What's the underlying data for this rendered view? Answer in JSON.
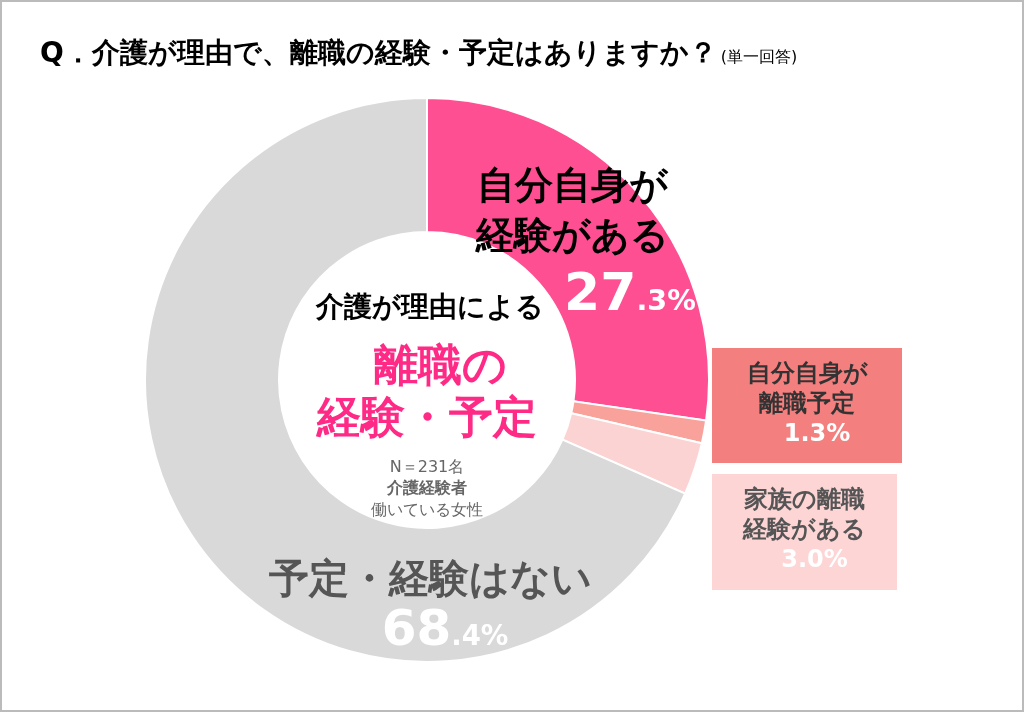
{
  "chart_data": {
    "type": "donut",
    "title": "Q．介護が理由で、離職の経験・予定はありますか？",
    "subtitle": "(単一回答)",
    "categories": [
      "自分自身が経験がある",
      "自分自身が離職予定",
      "家族の離職経験がある",
      "予定・経験はない"
    ],
    "values": [
      27.3,
      1.3,
      3.0,
      68.4
    ],
    "colors": [
      "#ff4f93",
      "#f9a29b",
      "#fcd3d3",
      "#d9d9d9"
    ],
    "value_labels": [
      "27.3%",
      "1.3%",
      "3.0%",
      "68.4%"
    ],
    "annotations": [
      "介護が理由による",
      "離職の",
      "経験・予定",
      "N＝231名",
      "介護経験者",
      "働いている女性"
    ]
  }
}
